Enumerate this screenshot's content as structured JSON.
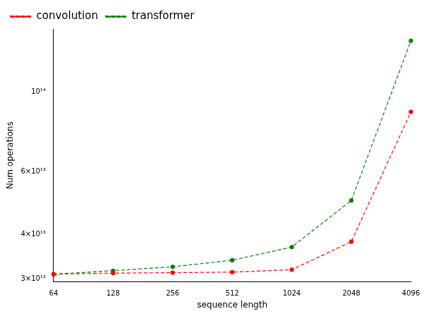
{
  "chart_data": {
    "type": "line",
    "x_label": "sequence length",
    "y_label": "Num operations",
    "categories": [
      "64",
      "128",
      "256",
      "512",
      "1024",
      "2048",
      "4096"
    ],
    "series": [
      {
        "name": "convolution",
        "color": "#ff0000",
        "marker": "circle",
        "line_style": "dashed",
        "values": [
          31000000000000.0,
          31200000000000.0,
          31300000000000.0,
          31400000000000.0,
          31900000000000.0,
          38200000000000.0,
          88000000000000.0
        ]
      },
      {
        "name": "transformer",
        "color": "#008000",
        "marker": "circle",
        "line_style": "dashed",
        "values": [
          31000000000000.0,
          31700000000000.0,
          32500000000000.0,
          33900000000000.0,
          36900000000000.0,
          49800000000000.0,
          139000000000000.0
        ]
      }
    ],
    "log": "y",
    "ylim": [
      29500000000000.0,
      150000000000000.0
    ],
    "yticks": [
      {
        "value": 30000000000000,
        "label": "3×10¹³"
      },
      {
        "value": 40000000000000,
        "label": "4×10¹³"
      },
      {
        "value": 60000000000000,
        "label": "6×10¹³"
      },
      {
        "value": 100000000000000,
        "label": "10¹⁴"
      }
    ],
    "grid": false,
    "legend": "upper left"
  }
}
